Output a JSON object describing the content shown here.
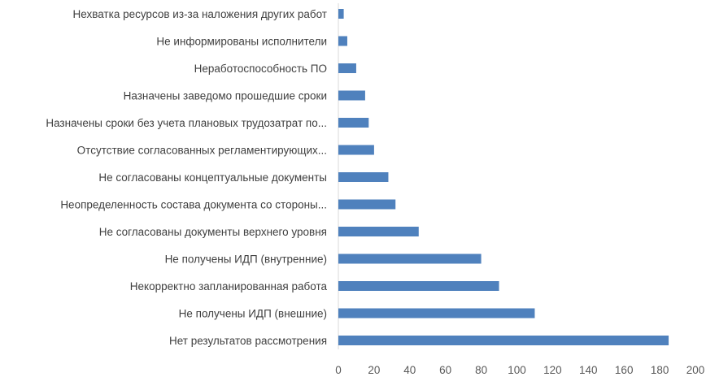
{
  "chart_data": {
    "type": "bar",
    "orientation": "horizontal",
    "title": "",
    "xlabel": "",
    "ylabel": "",
    "categories": [
      "Нехватка ресурсов из-за наложения других работ",
      "Не информированы исполнители",
      "Неработоспособность ПО",
      "Назначены заведомо прошедшие сроки",
      "Назначены сроки без учета плановых трудозатрат по...",
      "Отсутствие согласованных регламентирующих...",
      "Не согласованы концептуальные документы",
      "Неопределенность состава документа со стороны...",
      "Не согласованы документы верхнего уровня",
      "Не получены ИДП (внутренние)",
      "Некорректно запланированная работа",
      "Не получены ИДП (внешние)",
      "Нет результатов рассмотрения"
    ],
    "values": [
      3,
      5,
      10,
      15,
      17,
      20,
      28,
      32,
      45,
      80,
      90,
      110,
      185
    ],
    "xlim": [
      0,
      200
    ],
    "xticks": [
      "0",
      "20",
      "40",
      "60",
      "80",
      "100",
      "120",
      "140",
      "160",
      "180",
      "200"
    ],
    "grid": false,
    "legend": "none",
    "bar_color": "#4f81bd"
  }
}
